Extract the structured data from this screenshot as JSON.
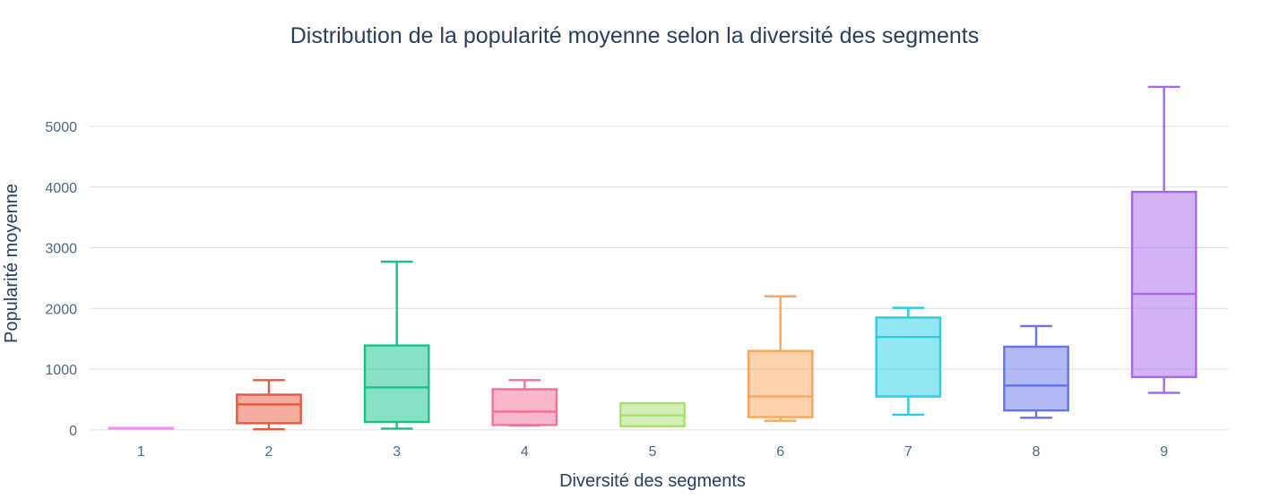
{
  "chart_data": {
    "type": "box",
    "title": "Distribution de la popularité moyenne selon la diversité des segments",
    "xlabel": "Diversité des segments",
    "ylabel": "Popularité moyenne",
    "ylim": [
      -150,
      5900
    ],
    "yticks": [
      0,
      1000,
      2000,
      3000,
      4000,
      5000
    ],
    "grid": true,
    "legend": "none",
    "categories": [
      "1",
      "2",
      "3",
      "4",
      "5",
      "6",
      "7",
      "8",
      "9"
    ],
    "boxes": [
      {
        "category": "1",
        "min": 30,
        "q1": 30,
        "median": 30,
        "q3": 30,
        "max": 30,
        "color": "#f08ef5"
      },
      {
        "category": "2",
        "min": 10,
        "q1": 110,
        "median": 420,
        "q3": 580,
        "max": 820,
        "color": "#e8593c"
      },
      {
        "category": "3",
        "min": 20,
        "q1": 130,
        "median": 700,
        "q3": 1390,
        "max": 2770,
        "color": "#12c48b"
      },
      {
        "category": "4",
        "min": 70,
        "q1": 80,
        "median": 300,
        "q3": 670,
        "max": 820,
        "color": "#f5709a"
      },
      {
        "category": "5",
        "min": 60,
        "q1": 60,
        "median": 240,
        "q3": 440,
        "max": 440,
        "color": "#a8e070"
      },
      {
        "category": "6",
        "min": 150,
        "q1": 210,
        "median": 550,
        "q3": 1300,
        "max": 2200,
        "color": "#fba55a"
      },
      {
        "category": "7",
        "min": 250,
        "q1": 550,
        "median": 1530,
        "q3": 1850,
        "max": 2010,
        "color": "#26cfe6"
      },
      {
        "category": "8",
        "min": 200,
        "q1": 320,
        "median": 730,
        "q3": 1370,
        "max": 1710,
        "color": "#6673ec"
      },
      {
        "category": "9",
        "min": 610,
        "q1": 870,
        "median": 2240,
        "q3": 3920,
        "max": 5650,
        "color": "#a866ee"
      }
    ]
  }
}
